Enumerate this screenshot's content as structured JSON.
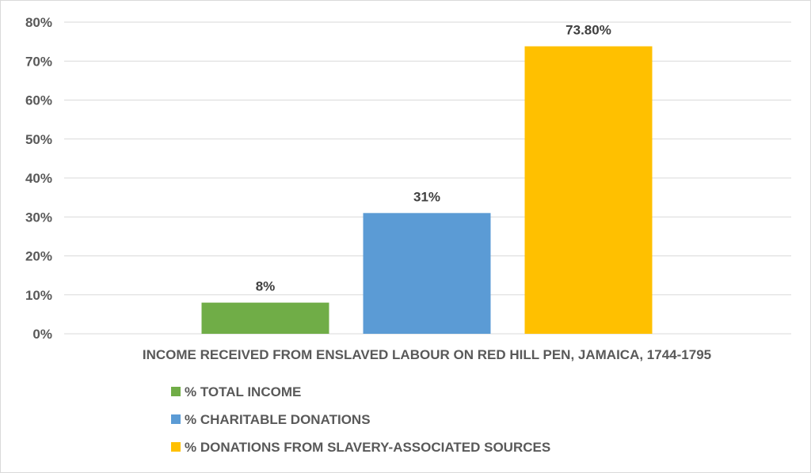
{
  "chart_data": {
    "type": "bar",
    "categories": [
      "INCOME RECEIVED FROM ENSLAVED LABOUR ON RED HILL PEN, JAMAICA, 1744-1795"
    ],
    "series": [
      {
        "name": "% TOTAL INCOME",
        "values": [
          0.08
        ],
        "value_label": "8%",
        "color": "#70ad47"
      },
      {
        "name": "% CHARITABLE DONATIONS",
        "values": [
          0.31
        ],
        "value_label": "31%",
        "color": "#5b9bd5"
      },
      {
        "name": "% DONATIONS FROM SLAVERY-ASSOCIATED SOURCES",
        "values": [
          0.738
        ],
        "value_label": "73.80%",
        "color": "#ffc000"
      }
    ],
    "ylim": [
      0,
      0.8
    ],
    "yticks": [
      {
        "value": 0,
        "label": "0%"
      },
      {
        "value": 0.1,
        "label": "10%"
      },
      {
        "value": 0.2,
        "label": "20%"
      },
      {
        "value": 0.3,
        "label": "30%"
      },
      {
        "value": 0.4,
        "label": "40%"
      },
      {
        "value": 0.5,
        "label": "50%"
      },
      {
        "value": 0.6,
        "label": "60%"
      },
      {
        "value": 0.7,
        "label": "70%"
      },
      {
        "value": 0.8,
        "label": "80%"
      }
    ],
    "grid": true,
    "legend_position": "bottom"
  }
}
